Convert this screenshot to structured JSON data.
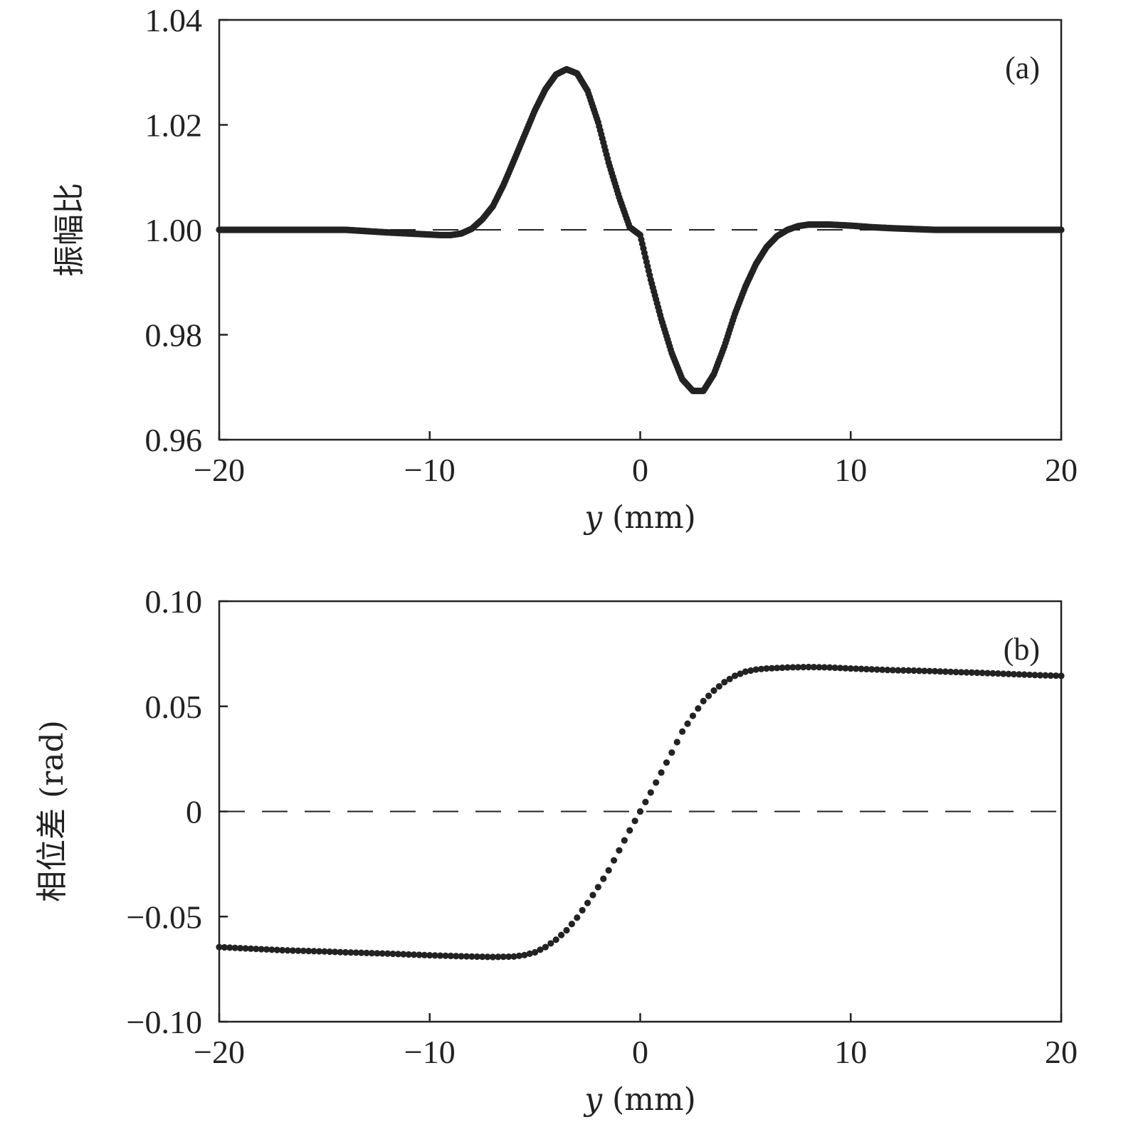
{
  "chart_data": [
    {
      "type": "scatter",
      "panel_label": "(a)",
      "xlabel_var": "y",
      "xlabel_unit": "(mm)",
      "ylabel": "振幅比",
      "xlim": [
        -20,
        20
      ],
      "ylim": [
        0.96,
        1.04
      ],
      "xticks": [
        -20,
        -10,
        0,
        10,
        20
      ],
      "xtick_labels": [
        "−20",
        "−10",
        "0",
        "10",
        "20"
      ],
      "yticks": [
        0.96,
        0.98,
        1.0,
        1.02,
        1.04
      ],
      "ytick_labels": [
        "0.96",
        "0.98",
        "1.00",
        "1.02",
        "1.04"
      ],
      "reference_line": 1.0,
      "reference_style": "dashed",
      "grid": false,
      "marker_color": "#222222",
      "series": [
        {
          "x": [
            -20,
            -18,
            -16,
            -14,
            -12,
            -11,
            -10,
            -9.5,
            -9,
            -8.5,
            -8,
            -7.5,
            -7,
            -6.5,
            -6,
            -5.5,
            -5,
            -4.5,
            -4,
            -3.5,
            -3,
            -2.5,
            -2,
            -1.5,
            -1,
            -0.5,
            0,
            0.5,
            1,
            1.5,
            2,
            2.5,
            3,
            3.5,
            4,
            4.5,
            5,
            5.5,
            6,
            6.5,
            7,
            7.5,
            8,
            8.5,
            9,
            9.5,
            10,
            11,
            12,
            14,
            16,
            18,
            20
          ],
          "y": [
            1.0,
            1.0,
            1.0,
            1.0,
            0.9995,
            0.9993,
            0.9991,
            0.999,
            0.999,
            0.9993,
            1.0002,
            1.002,
            1.0045,
            1.0085,
            1.0132,
            1.018,
            1.0228,
            1.0268,
            1.0296,
            1.0306,
            1.0298,
            1.0265,
            1.0205,
            1.0128,
            1.0062,
            1.0005,
            0.999,
            0.9905,
            0.983,
            0.9765,
            0.9715,
            0.9693,
            0.9693,
            0.9725,
            0.9778,
            0.984,
            0.9892,
            0.9935,
            0.9967,
            0.9988,
            1.0,
            1.0007,
            1.001,
            1.001,
            1.001,
            1.0009,
            1.0008,
            1.0005,
            1.0003,
            1.0,
            1.0,
            1.0,
            1.0
          ]
        }
      ]
    },
    {
      "type": "scatter",
      "panel_label": "(b)",
      "xlabel_var": "y",
      "xlabel_unit": "(mm)",
      "ylabel": "相位差 (rad)",
      "xlim": [
        -20,
        20
      ],
      "ylim": [
        -0.1,
        0.1
      ],
      "xticks": [
        -20,
        -10,
        0,
        10,
        20
      ],
      "xtick_labels": [
        "−20",
        "−10",
        "0",
        "10",
        "20"
      ],
      "yticks": [
        -0.1,
        -0.05,
        0,
        0.05,
        0.1
      ],
      "ytick_labels": [
        "−0.10",
        "−0.05",
        "0",
        "0.05",
        "0.10"
      ],
      "reference_line": 0,
      "reference_style": "dashed",
      "grid": false,
      "marker_color": "#222222",
      "series": [
        {
          "x": [
            -20,
            -19,
            -18,
            -17,
            -16,
            -15,
            -14,
            -13,
            -12,
            -11,
            -10,
            -9,
            -8,
            -7,
            -6,
            -5.5,
            -5,
            -4.5,
            -4,
            -3.5,
            -3,
            -2.5,
            -2,
            -1.5,
            -1,
            -0.5,
            0,
            0.5,
            1,
            1.5,
            2,
            2.5,
            3,
            3.5,
            4,
            4.5,
            5,
            5.5,
            6,
            7,
            8,
            9,
            10,
            11,
            12,
            13,
            14,
            15,
            16,
            17,
            18,
            19,
            20
          ],
          "y": [
            -0.0645,
            -0.065,
            -0.0655,
            -0.066,
            -0.0663,
            -0.0666,
            -0.067,
            -0.0673,
            -0.0676,
            -0.068,
            -0.0684,
            -0.0687,
            -0.069,
            -0.0692,
            -0.069,
            -0.0683,
            -0.067,
            -0.0645,
            -0.061,
            -0.0565,
            -0.0505,
            -0.0435,
            -0.036,
            -0.028,
            -0.0185,
            -0.009,
            0.0,
            0.009,
            0.0185,
            0.028,
            0.038,
            0.0455,
            0.0525,
            0.0575,
            0.0615,
            0.0645,
            0.0665,
            0.0675,
            0.068,
            0.0685,
            0.0687,
            0.0685,
            0.068,
            0.0676,
            0.0672,
            0.067,
            0.0667,
            0.0663,
            0.066,
            0.0656,
            0.0652,
            0.0648,
            0.0645
          ]
        }
      ]
    }
  ]
}
